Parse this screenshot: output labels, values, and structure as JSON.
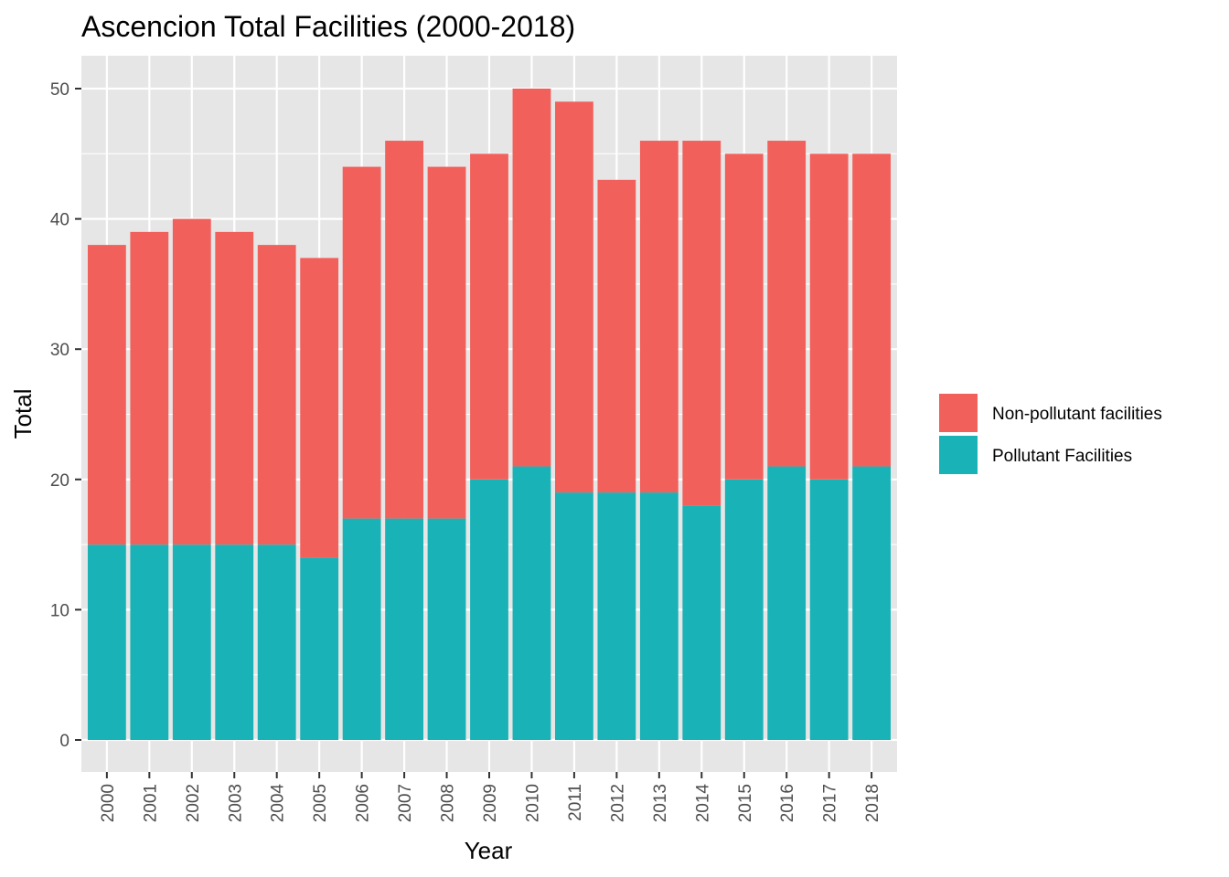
{
  "chart_data": {
    "type": "bar",
    "stacked": true,
    "title": "Ascencion Total Facilities (2000-2018)",
    "xlabel": "Year",
    "ylabel": "Total",
    "categories": [
      "2000",
      "2001",
      "2002",
      "2003",
      "2004",
      "2005",
      "2006",
      "2007",
      "2008",
      "2009",
      "2010",
      "2011",
      "2012",
      "2013",
      "2014",
      "2015",
      "2016",
      "2017",
      "2018"
    ],
    "series": [
      {
        "name": "Pollutant Facilities",
        "color": "#19b3b7",
        "values": [
          15,
          15,
          15,
          15,
          15,
          14,
          17,
          17,
          17,
          20,
          21,
          19,
          19,
          19,
          18,
          20,
          21,
          20,
          21
        ]
      },
      {
        "name": "Non-pollutant facilities",
        "color": "#f2605c",
        "values": [
          23,
          24,
          25,
          24,
          23,
          23,
          27,
          29,
          27,
          25,
          29,
          30,
          24,
          27,
          28,
          25,
          25,
          25,
          24
        ]
      }
    ],
    "ylim": [
      0,
      52.5
    ],
    "yticks": [
      0,
      10,
      20,
      30,
      40,
      50
    ],
    "grid": true,
    "panel_background": "#e6e6e6",
    "legend_position": "right",
    "legend_order": [
      "Non-pollutant facilities",
      "Pollutant Facilities"
    ]
  }
}
